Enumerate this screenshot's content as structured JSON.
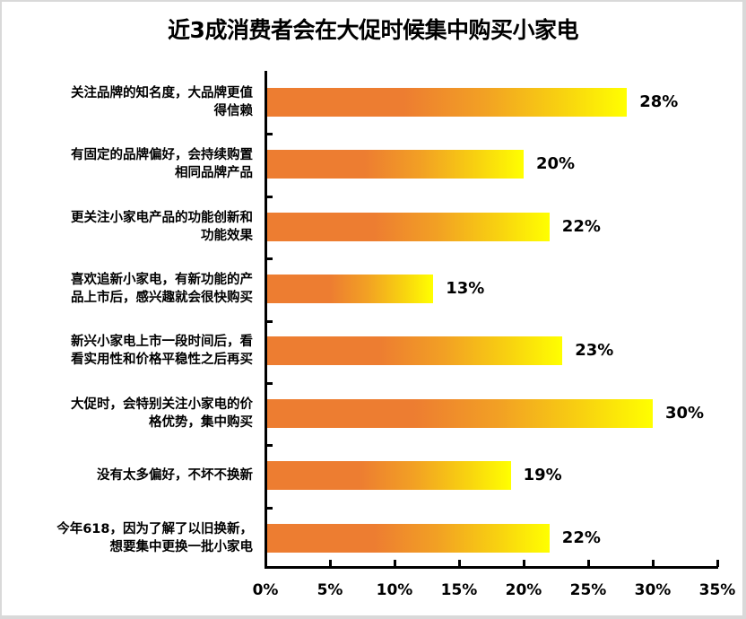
{
  "chart_data": {
    "type": "bar",
    "orientation": "horizontal",
    "title": "近3成消费者会在大促时候集中购买小家电",
    "xlabel": "",
    "ylabel": "",
    "xlim": [
      0,
      35
    ],
    "x_ticks": [
      "0%",
      "5%",
      "10%",
      "15%",
      "20%",
      "25%",
      "30%",
      "35%"
    ],
    "grid": false,
    "legend": null,
    "bar_fill": "gradient #ed7d31 → #ffff00",
    "categories": [
      [
        "关注品牌的知名度，大品牌更值",
        "得信赖"
      ],
      [
        "有固定的品牌偏好，会持续购置",
        "相同品牌产品"
      ],
      [
        "更关注小家电产品的功能创新和",
        "功能效果"
      ],
      [
        "喜欢追新小家电，有新功能的产",
        "品上市后，感兴趣就会很快购买"
      ],
      [
        "新兴小家电上市一段时间后，看",
        "看实用性和价格平稳性之后再买"
      ],
      [
        "大促时，会特别关注小家电的价",
        "格优势，集中购买"
      ],
      [
        "没有太多偏好，不坏不换新"
      ],
      [
        "今年618，因为了解了以旧换新，",
        "想要集中更换一批小家电"
      ]
    ],
    "values": [
      28,
      20,
      22,
      13,
      23,
      30,
      19,
      22
    ],
    "value_labels": [
      "28%",
      "20%",
      "22%",
      "13%",
      "23%",
      "30%",
      "19%",
      "22%"
    ]
  },
  "colors": {
    "bar_start": "#ed7d31",
    "bar_end": "#ffff00",
    "axis": "#000000",
    "text": "#000000",
    "background": "#ffffff"
  }
}
